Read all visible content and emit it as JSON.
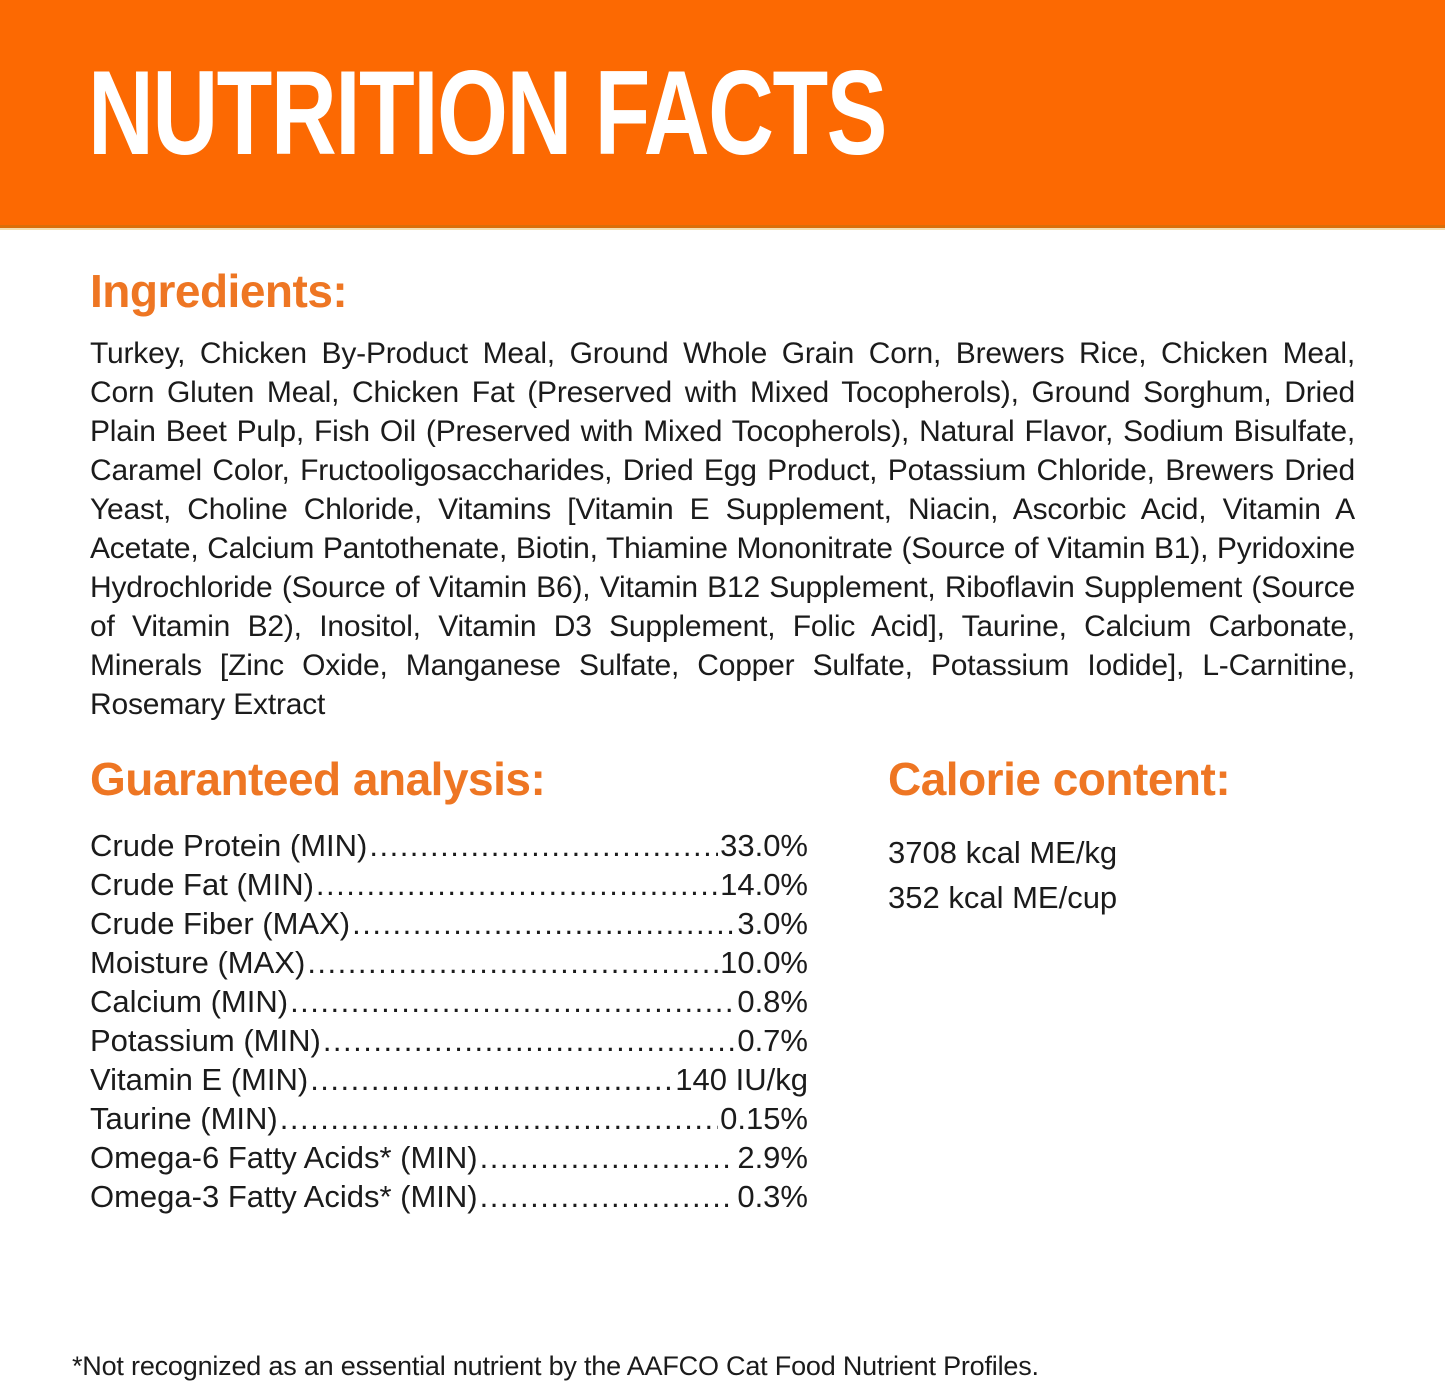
{
  "header": {
    "title": "NUTRITION FACTS"
  },
  "colors": {
    "banner_orange": "#FC6902",
    "heading_orange": "#EE7623",
    "text_dark": "#1b1b1b"
  },
  "ingredients": {
    "heading": "Ingredients:",
    "text": "Turkey, Chicken By-Product Meal, Ground Whole Grain Corn, Brewers Rice, Chicken Meal, Corn Gluten Meal, Chicken Fat (Preserved with Mixed Tocopherols), Ground Sorghum, Dried Plain Beet Pulp, Fish Oil (Preserved with Mixed Tocopherols), Natural Flavor, Sodium Bisulfate, Caramel Color, Fructooligosaccharides, Dried Egg Product, Potassium Chloride, Brewers Dried Yeast, Choline Chloride, Vitamins [Vitamin E Supplement, Niacin, Ascorbic Acid, Vitamin A Acetate, Calcium Pantothenate, Biotin, Thiamine Mononitrate (Source of Vitamin B1), Pyridoxine Hydrochloride (Source of Vitamin B6), Vitamin B12 Supplement, Riboflavin Supplement (Source of Vitamin B2), Inositol, Vitamin D3 Supplement, Folic Acid], Taurine, Calcium Carbonate, Minerals [Zinc Oxide, Manganese Sulfate, Copper Sulfate, Potassium Iodide], L-Carnitine, Rosemary Extract"
  },
  "guaranteed_analysis": {
    "heading": "Guaranteed analysis:",
    "rows": [
      {
        "label": "Crude Protein (MIN)",
        "value": "33.0%"
      },
      {
        "label": "Crude Fat (MIN)",
        "value": "14.0%"
      },
      {
        "label": "Crude Fiber (MAX)",
        "value": "3.0%"
      },
      {
        "label": "Moisture (MAX)",
        "value": "10.0%"
      },
      {
        "label": "Calcium (MIN)",
        "value": "0.8%"
      },
      {
        "label": "Potassium (MIN)",
        "value": "0.7%"
      },
      {
        "label": "Vitamin E (MIN)",
        "value": "140 IU/kg"
      },
      {
        "label": "Taurine (MIN)",
        "value": "0.15%"
      },
      {
        "label": "Omega-6 Fatty Acids* (MIN)",
        "value": "2.9%"
      },
      {
        "label": "Omega-3 Fatty Acids* (MIN)",
        "value": "0.3%"
      }
    ]
  },
  "calorie_content": {
    "heading": "Calorie content:",
    "lines": [
      "3708 kcal ME/kg",
      "352 kcal ME/cup"
    ]
  },
  "footnote": "*Not recognized as an essential nutrient by the AAFCO Cat Food Nutrient Profiles."
}
